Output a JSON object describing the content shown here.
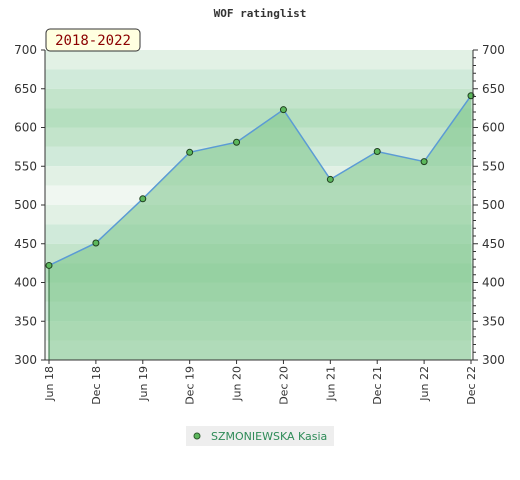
{
  "chart_data": {
    "type": "area",
    "title": "WOF ratinglist",
    "badge": "2018-2022",
    "x": [
      "Jun 18",
      "Dec 18",
      "Jun 19",
      "Dec 19",
      "Jun 20",
      "Dec 20",
      "Jun 21",
      "Dec 21",
      "Jun 22",
      "Dec 22"
    ],
    "ylim": [
      300,
      700
    ],
    "yticks": [
      300,
      350,
      400,
      450,
      500,
      550,
      600,
      650,
      700
    ],
    "series": [
      {
        "name": "SZMONIEWSKA Kasia",
        "values": [
          422,
          451,
          508,
          568,
          581,
          623,
          533,
          569,
          556,
          641
        ]
      }
    ],
    "colors": {
      "line": "#5b9bd5",
      "fill": "#7cc48a",
      "marker": "#5cb85c",
      "band_light": "#f0f7f1",
      "band_dark": "#b5dfbf"
    },
    "grid": true,
    "legend": "bottom-center"
  }
}
